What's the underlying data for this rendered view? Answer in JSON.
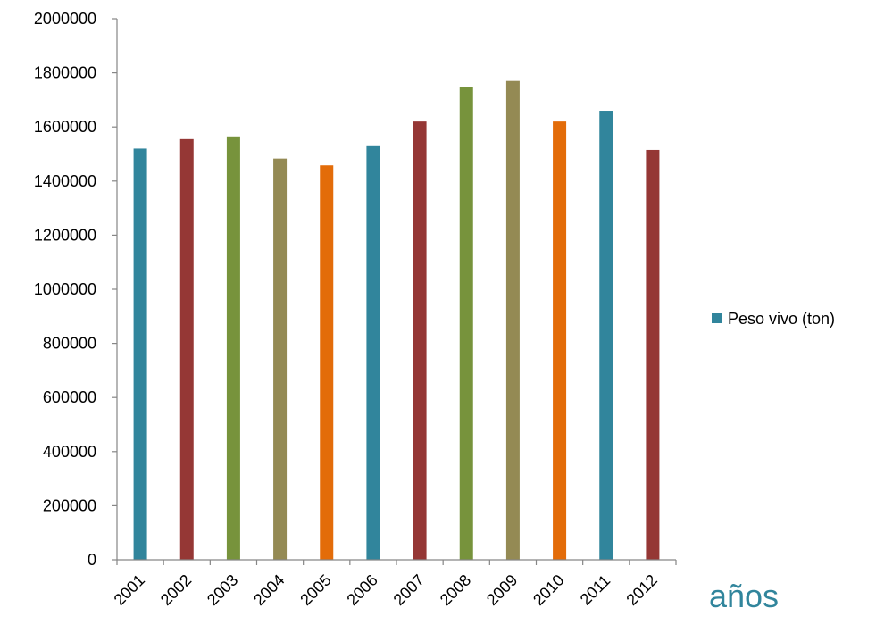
{
  "chart_data": {
    "type": "bar",
    "categories": [
      "2001",
      "2002",
      "2003",
      "2004",
      "2005",
      "2006",
      "2007",
      "2008",
      "2009",
      "2010",
      "2011",
      "2012"
    ],
    "series": [
      {
        "name": "Peso vivo (ton)",
        "values": [
          1520000,
          1555000,
          1565000,
          1483000,
          1458000,
          1532000,
          1620000,
          1747000,
          1770000,
          1620000,
          1660000,
          1515000
        ]
      }
    ],
    "bar_colors": [
      "#31859C",
      "#953735",
      "#77933C",
      "#948A54",
      "#E36C09",
      "#31859C",
      "#953735",
      "#77933C",
      "#948A54",
      "#E36C09",
      "#31859C",
      "#953735"
    ],
    "xlabel": "años",
    "xlabel_color": "#31859C",
    "ylabel": "",
    "ylim": [
      0,
      2000000
    ],
    "yticks": [
      "0",
      "200000",
      "400000",
      "600000",
      "800000",
      "1000000",
      "1200000",
      "1400000",
      "1600000",
      "1800000",
      "2000000"
    ],
    "legend": {
      "entries": [
        {
          "label": "Peso vivo (ton)",
          "color": "#31859C"
        }
      ],
      "placement": "right"
    },
    "grid": false
  }
}
